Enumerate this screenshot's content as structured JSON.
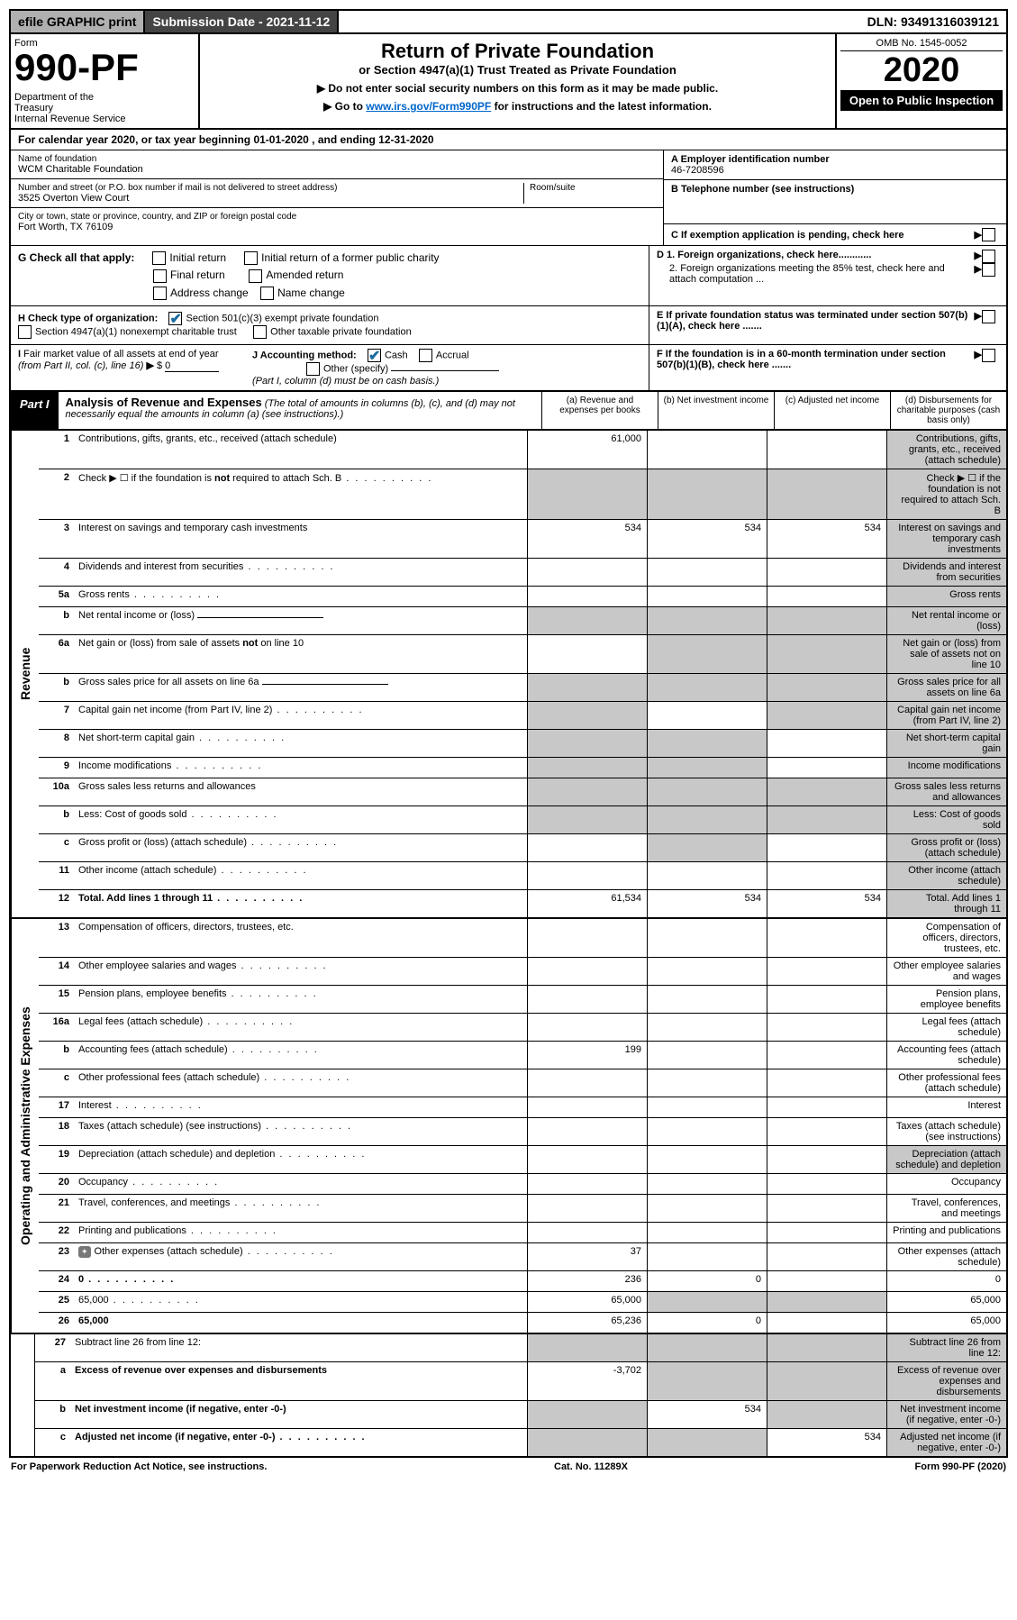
{
  "top": {
    "efile": "efile GRAPHIC print",
    "subdate_label": "Submission Date - 2021-11-12",
    "dln": "DLN: 93491316039121"
  },
  "header": {
    "form_label": "Form",
    "form_no": "990-PF",
    "dept": "Department of the Treasury\nInternal Revenue Service",
    "title": "Return of Private Foundation",
    "sub": "or Section 4947(a)(1) Trust Treated as Private Foundation",
    "note1": "▶ Do not enter social security numbers on this form as it may be made public.",
    "note2_pre": "▶ Go to ",
    "note2_link": "www.irs.gov/Form990PF",
    "note2_post": " for instructions and the latest information.",
    "omb": "OMB No. 1545-0052",
    "year": "2020",
    "open": "Open to Public Inspection"
  },
  "cal": "For calendar year 2020, or tax year beginning 01-01-2020                             , and ending 12-31-2020",
  "info": {
    "name_label": "Name of foundation",
    "name": "WCM Charitable Foundation",
    "addr_label": "Number and street (or P.O. box number if mail is not delivered to street address)",
    "addr": "3525 Overton View Court",
    "room_label": "Room/suite",
    "city_label": "City or town, state or province, country, and ZIP or foreign postal code",
    "city": "Fort Worth, TX  76109",
    "ein_label": "A Employer identification number",
    "ein": "46-7208596",
    "phone_label": "B Telephone number (see instructions)",
    "c": "C If exemption application is pending, check here",
    "d1": "D 1. Foreign organizations, check here............",
    "d2": "2. Foreign organizations meeting the 85% test, check here and attach computation ...",
    "e": "E  If private foundation status was terminated under section 507(b)(1)(A), check here .......",
    "f": "F  If the foundation is in a 60-month termination under section 507(b)(1)(B), check here ......."
  },
  "g": {
    "label": "G Check all that apply:",
    "o1": "Initial return",
    "o2": "Initial return of a former public charity",
    "o3": "Final return",
    "o4": "Amended return",
    "o5": "Address change",
    "o6": "Name change"
  },
  "h": {
    "label": "H Check type of organization:",
    "o1": "Section 501(c)(3) exempt private foundation",
    "o2": "Section 4947(a)(1) nonexempt charitable trust",
    "o3": "Other taxable private foundation"
  },
  "i": {
    "label": "I Fair market value of all assets at end of year (from Part II, col. (c), line 16) ▶ $",
    "val": "0"
  },
  "j": {
    "label": "J Accounting method:",
    "o1": "Cash",
    "o2": "Accrual",
    "o3": "Other (specify)",
    "note": "(Part I, column (d) must be on cash basis.)"
  },
  "part1": {
    "label": "Part I",
    "title": "Analysis of Revenue and Expenses",
    "note": " (The total of amounts in columns (b), (c), and (d) may not necessarily equal the amounts in column (a) (see instructions).)",
    "cols": {
      "a": "(a)   Revenue and expenses per books",
      "b": "(b)   Net investment income",
      "c": "(c)   Adjusted net income",
      "d": "(d)   Disbursements for charitable purposes (cash basis only)"
    }
  },
  "side": {
    "rev": "Revenue",
    "op": "Operating and Administrative Expenses"
  },
  "rows": {
    "r1": {
      "n": "1",
      "d": "Contributions, gifts, grants, etc., received (attach schedule)",
      "a": "61,000",
      "grey": [
        "d"
      ]
    },
    "r2": {
      "n": "2",
      "d": "Check ▶ ☐ if the foundation is not required to attach Sch. B",
      "dotted": true,
      "grey_all": true
    },
    "r3": {
      "n": "3",
      "d": "Interest on savings and temporary cash investments",
      "a": "534",
      "b": "534",
      "c": "534",
      "grey": [
        "d"
      ]
    },
    "r4": {
      "n": "4",
      "d": "Dividends and interest from securities",
      "dotted": true,
      "grey": [
        "d"
      ]
    },
    "r5a": {
      "n": "5a",
      "d": "Gross rents",
      "dotted": true,
      "grey": [
        "d"
      ]
    },
    "r5b": {
      "n": "b",
      "d": "Net rental income or (loss)",
      "ul": true,
      "grey_all": true
    },
    "r6a": {
      "n": "6a",
      "d": "Net gain or (loss) from sale of assets not on line 10",
      "grey": [
        "b",
        "c",
        "d"
      ]
    },
    "r6b": {
      "n": "b",
      "d": "Gross sales price for all assets on line 6a",
      "ul": true,
      "grey_all": true
    },
    "r7": {
      "n": "7",
      "d": "Capital gain net income (from Part IV, line 2)",
      "dotted": true,
      "grey": [
        "a",
        "c",
        "d"
      ]
    },
    "r8": {
      "n": "8",
      "d": "Net short-term capital gain",
      "dotted": true,
      "grey": [
        "a",
        "b",
        "d"
      ]
    },
    "r9": {
      "n": "9",
      "d": "Income modifications",
      "dotted": true,
      "grey": [
        "a",
        "b",
        "d"
      ]
    },
    "r10a": {
      "n": "10a",
      "d": "Gross sales less returns and allowances",
      "box": true,
      "grey_all": true
    },
    "r10b": {
      "n": "b",
      "d": "Less: Cost of goods sold",
      "dotted": true,
      "box": true,
      "grey_all": true
    },
    "r10c": {
      "n": "c",
      "d": "Gross profit or (loss) (attach schedule)",
      "dotted": true,
      "grey": [
        "b",
        "d"
      ]
    },
    "r11": {
      "n": "11",
      "d": "Other income (attach schedule)",
      "dotted": true,
      "grey": [
        "d"
      ]
    },
    "r12": {
      "n": "12",
      "d": "Total. Add lines 1 through 11",
      "dotted": true,
      "bold": true,
      "a": "61,534",
      "b": "534",
      "c": "534",
      "grey": [
        "d"
      ]
    },
    "r13": {
      "n": "13",
      "d": "Compensation of officers, directors, trustees, etc."
    },
    "r14": {
      "n": "14",
      "d": "Other employee salaries and wages",
      "dotted": true
    },
    "r15": {
      "n": "15",
      "d": "Pension plans, employee benefits",
      "dotted": true
    },
    "r16a": {
      "n": "16a",
      "d": "Legal fees (attach schedule)",
      "dotted": true
    },
    "r16b": {
      "n": "b",
      "d": "Accounting fees (attach schedule)",
      "dotted": true,
      "a": "199"
    },
    "r16c": {
      "n": "c",
      "d": "Other professional fees (attach schedule)",
      "dotted": true
    },
    "r17": {
      "n": "17",
      "d": "Interest",
      "dotted": true
    },
    "r18": {
      "n": "18",
      "d": "Taxes (attach schedule) (see instructions)",
      "dotted": true
    },
    "r19": {
      "n": "19",
      "d": "Depreciation (attach schedule) and depletion",
      "dotted": true,
      "grey": [
        "d"
      ]
    },
    "r20": {
      "n": "20",
      "d": "Occupancy",
      "dotted": true
    },
    "r21": {
      "n": "21",
      "d": "Travel, conferences, and meetings",
      "dotted": true
    },
    "r22": {
      "n": "22",
      "d": "Printing and publications",
      "dotted": true
    },
    "r23": {
      "n": "23",
      "d": "Other expenses (attach schedule)",
      "dotted": true,
      "icon": true,
      "a": "37"
    },
    "r24": {
      "n": "24",
      "d": "0",
      "dotted": true,
      "bold": true,
      "a": "236",
      "b": "0"
    },
    "r25": {
      "n": "25",
      "d": "65,000",
      "dotted": true,
      "a": "65,000",
      "grey": [
        "b",
        "c"
      ]
    },
    "r26": {
      "n": "26",
      "d": "65,000",
      "bold": true,
      "a": "65,236",
      "b": "0"
    },
    "r27": {
      "n": "27",
      "d": "Subtract line 26 from line 12:",
      "grey_all": true
    },
    "r27a": {
      "n": "a",
      "d": "Excess of revenue over expenses and disbursements",
      "bold": true,
      "a": "-3,702",
      "grey": [
        "b",
        "c",
        "d"
      ]
    },
    "r27b": {
      "n": "b",
      "d": "Net investment income (if negative, enter -0-)",
      "bold": true,
      "b": "534",
      "grey": [
        "a",
        "c",
        "d"
      ]
    },
    "r27c": {
      "n": "c",
      "d": "Adjusted net income (if negative, enter -0-)",
      "bold": true,
      "dotted": true,
      "c": "534",
      "grey": [
        "a",
        "b",
        "d"
      ]
    }
  },
  "footer": {
    "left": "For Paperwork Reduction Act Notice, see instructions.",
    "mid": "Cat. No. 11289X",
    "right": "Form 990-PF (2020)"
  }
}
